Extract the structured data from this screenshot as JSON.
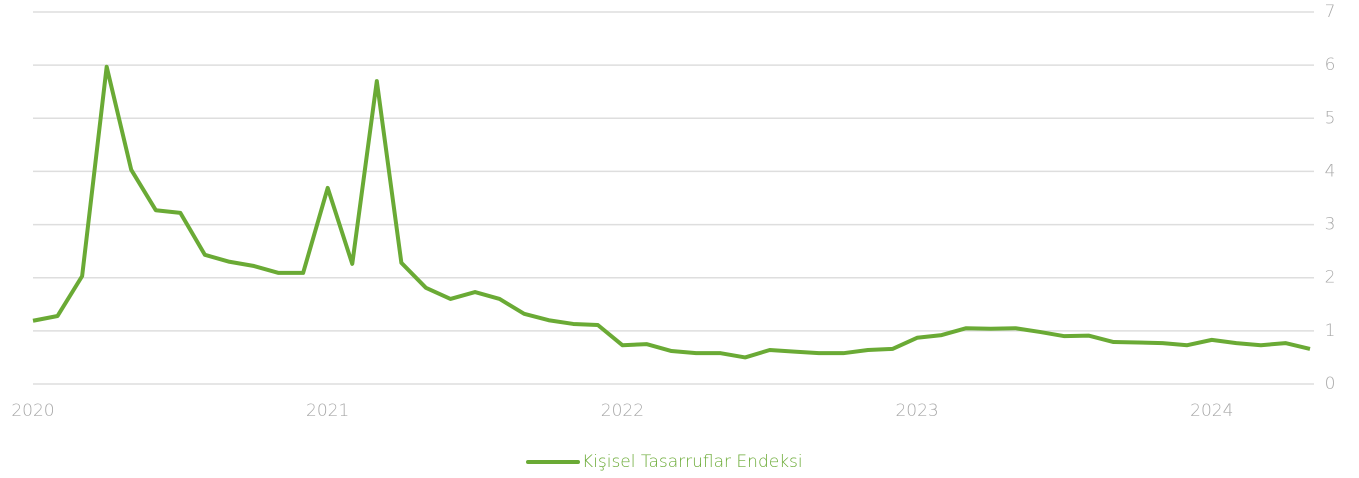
{
  "chart_data": {
    "type": "line",
    "categories": [
      "2020",
      null,
      null,
      null,
      null,
      null,
      null,
      null,
      null,
      null,
      null,
      null,
      "2021",
      null,
      null,
      null,
      null,
      null,
      null,
      null,
      null,
      null,
      null,
      null,
      "2022",
      null,
      null,
      null,
      null,
      null,
      null,
      null,
      null,
      null,
      null,
      null,
      "2023",
      null,
      null,
      null,
      null,
      null,
      null,
      null,
      null,
      null,
      null,
      null,
      "2024",
      null,
      null,
      null,
      null
    ],
    "series": [
      {
        "name": "Kişisel Tasarruflar Endeksi",
        "color": "#6aaa35",
        "values": [
          1.19,
          1.28,
          2.03,
          5.97,
          4.03,
          3.27,
          3.22,
          2.43,
          2.3,
          2.22,
          2.09,
          2.09,
          3.69,
          2.26,
          5.7,
          2.28,
          1.81,
          1.6,
          1.73,
          1.6,
          1.32,
          1.2,
          1.13,
          1.11,
          0.73,
          0.75,
          0.62,
          0.58,
          0.58,
          0.5,
          0.64,
          0.61,
          0.58,
          0.58,
          0.64,
          0.66,
          0.87,
          0.92,
          1.05,
          1.04,
          1.05,
          0.98,
          0.9,
          0.91,
          0.79,
          0.78,
          0.77,
          0.73,
          0.83,
          0.77,
          0.73,
          0.77,
          0.66
        ]
      }
    ],
    "ylim": [
      0,
      7
    ],
    "yticks": [
      0,
      1,
      2,
      3,
      4,
      5,
      6,
      7
    ],
    "grid": true,
    "legend": "bottom"
  }
}
